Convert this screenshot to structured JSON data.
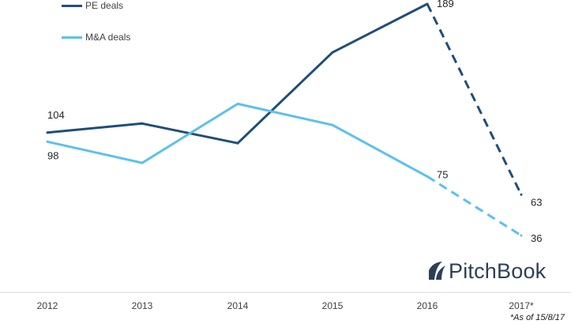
{
  "chart_data": {
    "type": "line",
    "categories": [
      "2012",
      "2013",
      "2014",
      "2015",
      "2016",
      "2017*"
    ],
    "series": [
      {
        "name": "PE deals",
        "values": [
          104,
          110,
          97,
          157,
          189,
          63
        ],
        "color": "#1f4e79",
        "projected_from_index": 4
      },
      {
        "name": "M&A deals",
        "values": [
          98,
          84,
          123,
          109,
          75,
          36
        ],
        "color": "#5bc0f0",
        "projected_from_index": 4
      }
    ],
    "data_labels": [
      {
        "series": 0,
        "index": 0,
        "text": "104"
      },
      {
        "series": 1,
        "index": 0,
        "text": "98"
      },
      {
        "series": 0,
        "index": 4,
        "text": "189"
      },
      {
        "series": 1,
        "index": 4,
        "text": "75"
      },
      {
        "series": 0,
        "index": 5,
        "text": "63"
      },
      {
        "series": 1,
        "index": 5,
        "text": "36"
      }
    ],
    "title": "",
    "xlabel": "",
    "ylabel": "",
    "ylim": [
      0,
      195
    ],
    "grid": false,
    "legend_position": "top-left"
  },
  "footnote": "*As of 15/8/17",
  "logo": {
    "text": "PitchBook",
    "color": "#2d3f58"
  }
}
